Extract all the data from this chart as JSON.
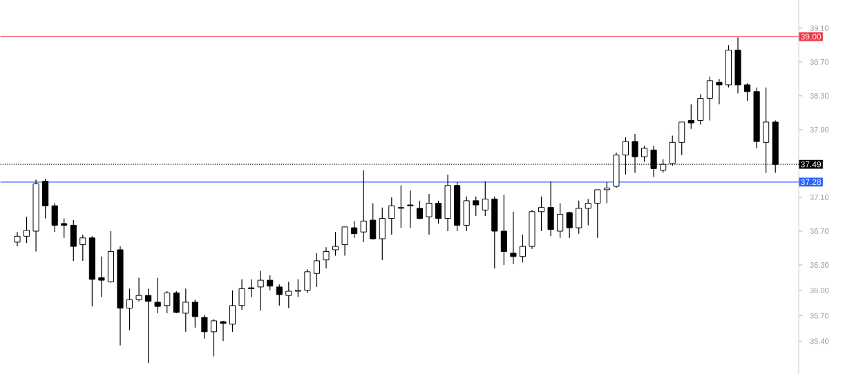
{
  "chart_data": {
    "type": "candlestick",
    "categories": [
      null,
      null,
      null,
      null,
      null,
      null,
      null,
      null,
      null,
      null,
      null,
      null,
      null,
      null,
      null,
      null,
      null,
      null,
      null,
      null,
      null,
      null,
      null,
      null,
      null,
      null,
      null,
      null,
      null,
      null,
      null,
      null,
      null,
      null,
      null,
      null,
      null,
      null,
      null,
      null,
      null,
      null,
      null,
      null,
      null,
      null,
      null,
      null,
      null,
      null,
      null,
      null,
      null,
      null,
      null,
      null,
      null,
      null,
      null,
      null,
      null,
      null,
      null,
      null,
      null,
      null,
      null,
      null,
      null,
      null,
      null,
      null,
      null,
      null,
      null,
      null,
      null,
      null,
      null,
      null,
      null,
      null
    ],
    "ohlc": [
      [
        36.57,
        36.69,
        36.52,
        36.64
      ],
      [
        36.64,
        36.87,
        36.56,
        36.71
      ],
      [
        36.7,
        37.31,
        36.46,
        37.26
      ],
      [
        37.29,
        37.32,
        36.85,
        37.0
      ],
      [
        37.0,
        37.03,
        36.69,
        36.77
      ],
      [
        36.79,
        36.85,
        36.62,
        36.77
      ],
      [
        36.77,
        36.83,
        36.35,
        36.52
      ],
      [
        36.54,
        36.66,
        36.35,
        36.62
      ],
      [
        36.62,
        36.64,
        35.81,
        36.13
      ],
      [
        36.15,
        36.4,
        35.92,
        36.12
      ],
      [
        36.1,
        36.7,
        36.09,
        36.46
      ],
      [
        36.48,
        36.52,
        35.35,
        35.79
      ],
      [
        35.79,
        36.02,
        35.53,
        35.89
      ],
      [
        35.89,
        36.15,
        35.87,
        35.94
      ],
      [
        35.94,
        36.02,
        35.14,
        35.87
      ],
      [
        35.86,
        36.15,
        35.73,
        35.81
      ],
      [
        35.82,
        35.99,
        35.73,
        35.97
      ],
      [
        35.97,
        35.99,
        35.73,
        35.74
      ],
      [
        35.73,
        36.02,
        35.51,
        35.86
      ],
      [
        35.86,
        35.89,
        35.56,
        35.69
      ],
      [
        35.68,
        35.71,
        35.43,
        35.51
      ],
      [
        35.51,
        35.66,
        35.22,
        35.64
      ],
      [
        35.63,
        35.64,
        35.4,
        35.61
      ],
      [
        35.6,
        36.0,
        35.51,
        35.82
      ],
      [
        35.82,
        36.13,
        35.77,
        36.02
      ],
      [
        36.03,
        36.13,
        35.92,
        36.02
      ],
      [
        36.04,
        36.23,
        35.76,
        36.12
      ],
      [
        36.12,
        36.18,
        36.0,
        36.05
      ],
      [
        36.04,
        36.07,
        35.82,
        35.95
      ],
      [
        35.94,
        36.1,
        35.79,
        35.99
      ],
      [
        35.99,
        36.13,
        35.92,
        36.0
      ],
      [
        36.0,
        36.25,
        35.97,
        36.22
      ],
      [
        36.2,
        36.44,
        36.04,
        36.35
      ],
      [
        36.36,
        36.51,
        36.26,
        36.46
      ],
      [
        36.48,
        36.69,
        36.41,
        36.52
      ],
      [
        36.54,
        36.75,
        36.41,
        36.75
      ],
      [
        36.74,
        36.82,
        36.62,
        36.67
      ],
      [
        36.69,
        37.42,
        36.57,
        36.82
      ],
      [
        36.83,
        37.03,
        36.6,
        36.61
      ],
      [
        36.61,
        36.98,
        36.36,
        36.85
      ],
      [
        36.85,
        37.1,
        36.66,
        37.0
      ],
      [
        36.97,
        37.24,
        36.74,
        36.98
      ],
      [
        37.01,
        37.18,
        36.74,
        37.0
      ],
      [
        36.97,
        37.06,
        36.84,
        36.85
      ],
      [
        36.87,
        37.14,
        36.66,
        37.03
      ],
      [
        37.03,
        37.06,
        36.79,
        36.85
      ],
      [
        36.85,
        37.37,
        36.7,
        37.24
      ],
      [
        37.24,
        37.28,
        36.7,
        36.77
      ],
      [
        36.77,
        37.11,
        36.7,
        37.06
      ],
      [
        37.06,
        37.11,
        36.88,
        37.01
      ],
      [
        36.95,
        37.29,
        36.88,
        37.08
      ],
      [
        37.08,
        37.11,
        36.26,
        36.7
      ],
      [
        36.7,
        37.13,
        36.3,
        36.46
      ],
      [
        36.44,
        36.93,
        36.31,
        36.4
      ],
      [
        36.4,
        36.66,
        36.33,
        36.52
      ],
      [
        36.52,
        36.95,
        36.49,
        36.93
      ],
      [
        36.93,
        37.11,
        36.7,
        36.98
      ],
      [
        36.98,
        37.29,
        36.64,
        36.72
      ],
      [
        36.7,
        37.03,
        36.62,
        36.9
      ],
      [
        36.92,
        36.93,
        36.62,
        36.74
      ],
      [
        36.74,
        37.06,
        36.67,
        36.97
      ],
      [
        36.97,
        37.08,
        36.77,
        37.03
      ],
      [
        37.03,
        37.19,
        36.62,
        37.19
      ],
      [
        37.19,
        37.28,
        37.03,
        37.21
      ],
      [
        37.23,
        37.63,
        37.21,
        37.6
      ],
      [
        37.6,
        37.81,
        37.37,
        37.76
      ],
      [
        37.76,
        37.85,
        37.39,
        37.58
      ],
      [
        37.58,
        37.71,
        37.52,
        37.68
      ],
      [
        37.66,
        37.71,
        37.34,
        37.44
      ],
      [
        37.42,
        37.55,
        37.39,
        37.49
      ],
      [
        37.5,
        37.83,
        37.47,
        37.75
      ],
      [
        37.75,
        37.99,
        37.6,
        37.99
      ],
      [
        38.01,
        38.2,
        37.91,
        37.98
      ],
      [
        38.01,
        38.32,
        37.96,
        38.27
      ],
      [
        38.27,
        38.53,
        38.01,
        38.48
      ],
      [
        38.46,
        38.5,
        38.2,
        38.43
      ],
      [
        38.43,
        38.9,
        38.4,
        38.84
      ],
      [
        38.84,
        38.99,
        38.33,
        38.43
      ],
      [
        38.43,
        38.45,
        38.24,
        38.35
      ],
      [
        38.35,
        38.4,
        37.68,
        37.76
      ],
      [
        37.75,
        38.4,
        37.39,
        37.99
      ],
      [
        37.99,
        38.01,
        37.39,
        37.49
      ]
    ],
    "ylim": [
      35.01,
      39.43
    ],
    "yticks": [
      {
        "value": 39.1,
        "label": "39.10"
      },
      {
        "value": 38.7,
        "label": "38.70"
      },
      {
        "value": 38.3,
        "label": "38.30"
      },
      {
        "value": 37.9,
        "label": "37.90"
      },
      {
        "value": 37.1,
        "label": "37.10"
      },
      {
        "value": 36.7,
        "label": "36.70"
      },
      {
        "value": 36.3,
        "label": "36.30"
      },
      {
        "value": 36.0,
        "label": "36.00"
      },
      {
        "value": 35.7,
        "label": "35.70"
      },
      {
        "value": 35.4,
        "label": "35.40"
      }
    ],
    "tick_labels": "y",
    "ref_lines": [
      {
        "axis": "y",
        "value": 39.0,
        "label": "39.00",
        "color": "#f23645",
        "line_style": "solid"
      },
      {
        "axis": "y",
        "value": 37.49,
        "label": "37.49",
        "color": "#000000",
        "line_style": "dotted"
      },
      {
        "axis": "y",
        "value": 37.28,
        "label": "37.28",
        "color": "#2962ff",
        "line_style": "solid"
      }
    ]
  }
}
